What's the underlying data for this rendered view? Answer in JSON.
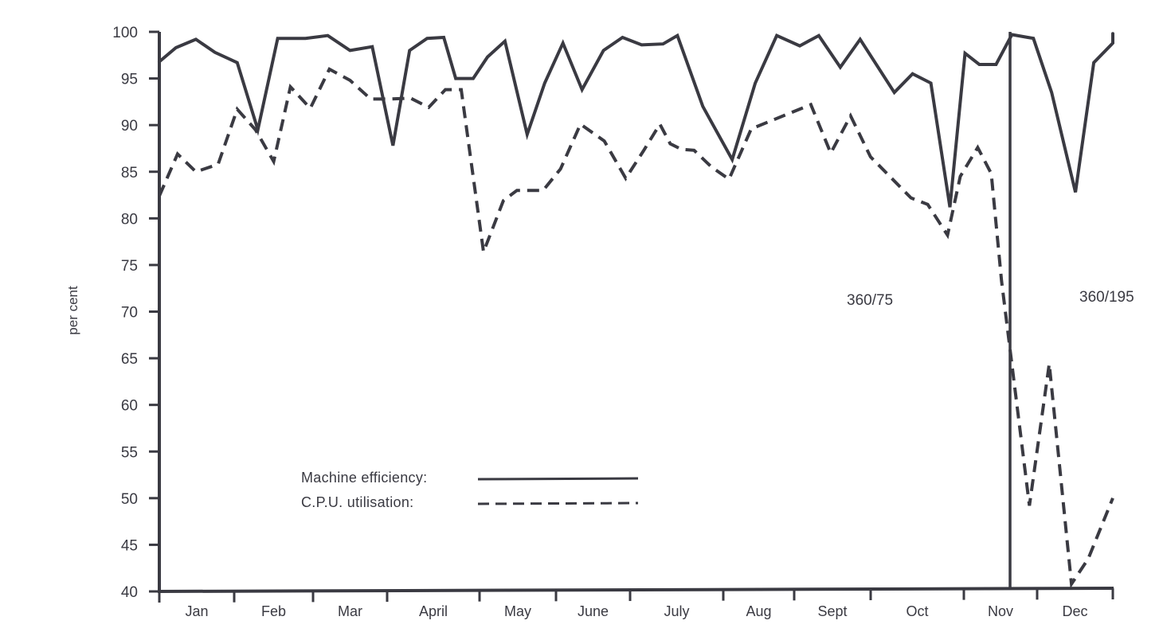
{
  "chart_data": {
    "type": "line",
    "title": "",
    "xlabel": "",
    "ylabel": "per cent",
    "ylim": [
      40,
      100
    ],
    "yticks": [
      40,
      45,
      50,
      55,
      60,
      65,
      70,
      75,
      80,
      85,
      90,
      95,
      100
    ],
    "grid": false,
    "legend_position": "lower-left (inside plot)",
    "months": [
      "Jan",
      "Feb",
      "Mar",
      "April",
      "May",
      "June",
      "July",
      "Aug",
      "Sept",
      "Oct",
      "Nov",
      "Dec"
    ],
    "x_axis_note": "x values are fractional month positions (0 = start of Jan, 12 = end of Dec)",
    "annotations": [
      {
        "text": "360/75",
        "position": "right of Oct / before changeover"
      },
      {
        "text": "360/195",
        "position": "after changeover in late Nov"
      }
    ],
    "changeover_marker": {
      "x": 10.6,
      "description": "vertical line marking switch from 360/75 to 360/195"
    },
    "series": [
      {
        "name": "Machine efficiency",
        "style": "solid",
        "x": [
          0.0,
          0.21,
          0.46,
          0.7,
          0.98,
          1.24,
          1.49,
          1.84,
          2.12,
          2.4,
          2.68,
          2.94,
          3.15,
          3.37,
          3.58,
          3.73,
          3.95,
          4.13,
          4.35,
          4.63,
          4.85,
          5.08,
          5.32,
          5.59,
          5.83,
          6.07,
          6.34,
          6.52,
          6.84,
          7.21,
          7.5,
          7.77,
          8.06,
          8.3,
          8.57,
          8.82,
          9.25,
          9.48,
          9.71,
          9.95,
          10.14,
          10.32,
          10.53,
          10.73,
          10.93,
          11.0,
          11.23,
          11.53,
          11.76,
          12.0,
          12.0
        ],
        "values": [
          96.8,
          98.3,
          99.2,
          97.8,
          96.7,
          89.5,
          99.3,
          99.3,
          99.6,
          98.0,
          98.4,
          87.8,
          98.0,
          99.3,
          99.4,
          95.0,
          95.0,
          97.3,
          99.0,
          89.0,
          94.5,
          98.8,
          93.8,
          98.0,
          99.4,
          98.6,
          98.7,
          99.6,
          92.0,
          86.3,
          94.5,
          99.6,
          98.5,
          99.6,
          96.2,
          99.2,
          93.5,
          95.5,
          94.5,
          81.2,
          97.7,
          96.5,
          96.5,
          99.7,
          99.4,
          99.3,
          93.5,
          82.8,
          96.7,
          98.8,
          99.8
        ]
      },
      {
        "name": "C.P.U. utilisation",
        "style": "dashed",
        "x": [
          0.0,
          0.23,
          0.46,
          0.74,
          0.98,
          1.21,
          1.44,
          1.65,
          1.9,
          2.14,
          2.4,
          2.66,
          2.91,
          3.16,
          3.39,
          3.6,
          3.8,
          4.08,
          4.33,
          4.5,
          4.83,
          5.05,
          5.3,
          5.6,
          5.87,
          6.09,
          6.3,
          6.43,
          6.57,
          6.73,
          6.95,
          7.17,
          7.45,
          8.2,
          8.45,
          8.7,
          8.95,
          9.46,
          9.67,
          9.92,
          10.08,
          10.3,
          10.47,
          10.6,
          10.95,
          11.2,
          11.48,
          11.69,
          12.0
        ],
        "values": [
          82.4,
          86.9,
          85.0,
          85.8,
          91.7,
          89.5,
          86.1,
          94.1,
          91.8,
          96.0,
          94.8,
          92.8,
          92.8,
          92.9,
          91.9,
          93.8,
          93.8,
          76.4,
          81.9,
          83.0,
          83.0,
          85.3,
          90.1,
          88.3,
          84.3,
          87.2,
          90.1,
          88.0,
          87.4,
          87.3,
          85.5,
          84.2,
          89.6,
          92.2,
          87.0,
          91.0,
          86.6,
          82.2,
          81.5,
          78.2,
          84.5,
          87.6,
          84.8,
          73.3,
          49.2,
          64.4,
          40.8,
          43.5,
          50.0
        ]
      }
    ]
  },
  "axis": {
    "ylabel": "per cent",
    "yticks": [
      "100",
      "95",
      "90",
      "85",
      "80",
      "75",
      "70",
      "65",
      "60",
      "55",
      "50",
      "45",
      "40"
    ],
    "months": [
      "Jan",
      "Feb",
      "Mar",
      "April",
      "May",
      "June",
      "July",
      "Aug",
      "Sept",
      "Oct",
      "Nov",
      "Dec"
    ]
  },
  "legend": {
    "solid_label": "Machine efficiency:",
    "dashed_label": "C.P.U. utilisation:"
  },
  "annotations": {
    "left": "360/75",
    "right": "360/195"
  },
  "colors": {
    "ink": "#3a3a42",
    "background": "#ffffff"
  }
}
